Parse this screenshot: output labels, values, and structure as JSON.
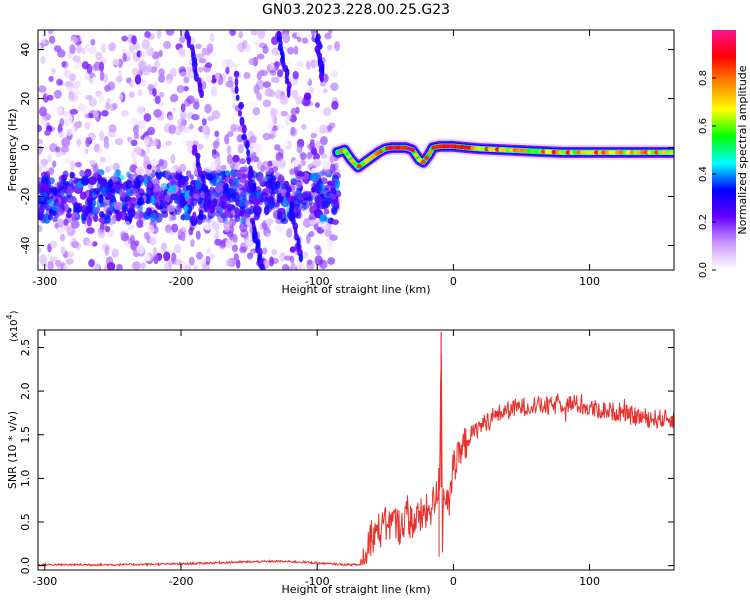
{
  "title": "GN03.2023.228.00.25.G23",
  "chart_data": [
    {
      "type": "heatmap",
      "xlabel": "Height of straight line (km)",
      "ylabel": "Frequency (Hz)",
      "xlim": [
        -305,
        162
      ],
      "ylim": [
        -50,
        48
      ],
      "x_ticks": [
        -300,
        -200,
        -100,
        0,
        100
      ],
      "x_tick_labels": [
        "-300",
        "-200",
        "-100",
        "0",
        "100"
      ],
      "y_ticks": [
        -40,
        -20,
        0,
        20,
        40
      ],
      "y_tick_labels": [
        "-40",
        "-20",
        "0",
        "20",
        "40"
      ],
      "colorbar": {
        "label": "Normalized spectral amplitude",
        "range": [
          0,
          1
        ],
        "ticks": [
          0.0,
          0.2,
          0.4,
          0.6,
          0.8
        ],
        "tick_labels": [
          "0.0",
          "0.2",
          "0.4",
          "0.6",
          "0.8"
        ],
        "colormap": [
          "#ffffff",
          "#cc99ff",
          "#6600ff",
          "#0000ff",
          "#00ffff",
          "#00ff00",
          "#ffff00",
          "#ff8800",
          "#ff0000",
          "#ff1493"
        ]
      },
      "noise_region_x": [
        -305,
        -85
      ],
      "noise_band_center_hz": -20,
      "streaks": [
        {
          "x": [
            -195,
            -185
          ],
          "y": [
            46,
            22
          ]
        },
        {
          "x": [
            -160,
            -148
          ],
          "y": [
            30,
            -15
          ]
        },
        {
          "x": [
            -128,
            -120
          ],
          "y": [
            46,
            22
          ]
        },
        {
          "x": [
            -100,
            -96
          ],
          "y": [
            45,
            28
          ]
        },
        {
          "x": [
            -190,
            -178
          ],
          "y": [
            0,
            -25
          ]
        },
        {
          "x": [
            -148,
            -140
          ],
          "y": [
            -30,
            -50
          ]
        },
        {
          "x": [
            -122,
            -112
          ],
          "y": [
            -15,
            -45
          ]
        }
      ],
      "signal_track": [
        {
          "x": -85,
          "y": -2
        },
        {
          "x": -80,
          "y": -1
        },
        {
          "x": -75,
          "y": -5
        },
        {
          "x": -70,
          "y": -8
        },
        {
          "x": -65,
          "y": -6
        },
        {
          "x": -60,
          "y": -4
        },
        {
          "x": -55,
          "y": -2
        },
        {
          "x": -50,
          "y": -0.5
        },
        {
          "x": -45,
          "y": 0
        },
        {
          "x": -40,
          "y": 0
        },
        {
          "x": -35,
          "y": 0
        },
        {
          "x": -30,
          "y": -1
        },
        {
          "x": -25,
          "y": -5
        },
        {
          "x": -22,
          "y": -6
        },
        {
          "x": -18,
          "y": -3
        },
        {
          "x": -15,
          "y": 0
        },
        {
          "x": -10,
          "y": 0.5
        },
        {
          "x": 0,
          "y": 0.5
        },
        {
          "x": 10,
          "y": 0
        },
        {
          "x": 20,
          "y": -0.5
        },
        {
          "x": 40,
          "y": -1
        },
        {
          "x": 60,
          "y": -1.5
        },
        {
          "x": 80,
          "y": -2
        },
        {
          "x": 100,
          "y": -2
        },
        {
          "x": 120,
          "y": -2
        },
        {
          "x": 140,
          "y": -2
        },
        {
          "x": 162,
          "y": -2
        }
      ]
    },
    {
      "type": "line",
      "xlabel": "Height of straight line (km)",
      "ylabel": "SNR (10 * v/v)",
      "scale_label": "(x10",
      "scale_exponent": "4",
      "scale_close": ")",
      "xlim": [
        -305,
        162
      ],
      "ylim": [
        -0.05,
        2.7
      ],
      "x_ticks": [
        -300,
        -200,
        -100,
        0,
        100
      ],
      "x_tick_labels": [
        "-300",
        "-200",
        "-100",
        "0",
        "100"
      ],
      "y_ticks": [
        0,
        0.5,
        1.0,
        1.5,
        2.0,
        2.5
      ],
      "y_tick_labels": [
        "0.0",
        "0.5",
        "1.0",
        "1.5",
        "2.0",
        "2.5"
      ],
      "color": "#e8322d",
      "series": [
        {
          "x": [
            -305,
            -250,
            -200,
            -160,
            -130,
            -110,
            -100,
            -90,
            -75,
            -68,
            -64,
            -60,
            -55,
            -50,
            -45,
            -40,
            -35,
            -30,
            -25,
            -20,
            -15,
            -12,
            -10,
            -9,
            -8,
            -7,
            -5,
            -2,
            0,
            5,
            10,
            20,
            30,
            40,
            50,
            60,
            70,
            80,
            90,
            100,
            110,
            120,
            130,
            140,
            150,
            162
          ],
          "y": [
            0.01,
            0.01,
            0.02,
            0.04,
            0.05,
            0.04,
            0.03,
            0.02,
            0.01,
            0.01,
            0.2,
            0.35,
            0.4,
            0.45,
            0.5,
            0.45,
            0.55,
            0.5,
            0.55,
            0.6,
            0.7,
            0.8,
            1.0,
            2.68,
            0.15,
            0.95,
            0.75,
            0.95,
            1.1,
            1.25,
            1.45,
            1.6,
            1.72,
            1.78,
            1.82,
            1.84,
            1.82,
            1.86,
            1.85,
            1.8,
            1.78,
            1.76,
            1.72,
            1.7,
            1.68,
            1.68
          ]
        }
      ]
    }
  ]
}
